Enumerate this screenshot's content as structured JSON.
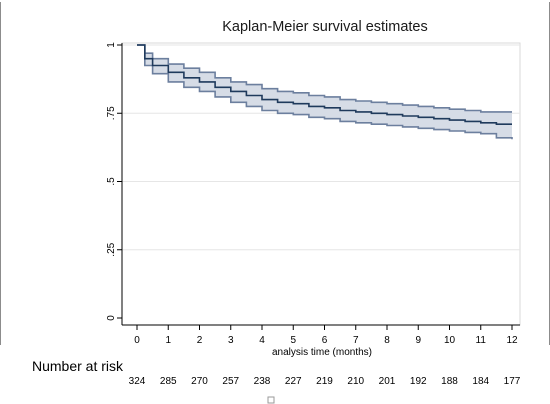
{
  "chart_data": {
    "type": "line",
    "title": "Kaplan-Meier survival estimates",
    "xlabel": "analysis time (months)",
    "ylabel": "",
    "x_ticks": [
      0,
      1,
      2,
      3,
      4,
      5,
      6,
      7,
      8,
      9,
      10,
      11,
      12
    ],
    "y_ticks": [
      0,
      0.25,
      0.5,
      0.75,
      1
    ],
    "y_tick_labels": [
      "0",
      ".25",
      ".5",
      ".75",
      "1"
    ],
    "xlim": [
      0,
      12
    ],
    "ylim": [
      0,
      1
    ],
    "grid": true,
    "x": [
      0,
      0.25,
      0.5,
      1,
      1.5,
      2,
      2.5,
      3,
      3.5,
      4,
      4.5,
      5,
      5.5,
      6,
      6.5,
      7,
      7.5,
      8,
      8.5,
      9,
      9.5,
      10,
      10.5,
      11,
      11.5,
      12
    ],
    "series": [
      {
        "type": "step",
        "values": [
          1.0,
          0.95,
          0.925,
          0.9,
          0.88,
          0.865,
          0.845,
          0.83,
          0.815,
          0.8,
          0.79,
          0.785,
          0.775,
          0.77,
          0.76,
          0.755,
          0.75,
          0.745,
          0.74,
          0.735,
          0.73,
          0.725,
          0.72,
          0.715,
          0.71,
          0.71
        ],
        "ci_lower": [
          1.0,
          0.925,
          0.895,
          0.865,
          0.845,
          0.83,
          0.81,
          0.79,
          0.775,
          0.76,
          0.75,
          0.745,
          0.735,
          0.73,
          0.72,
          0.715,
          0.71,
          0.705,
          0.7,
          0.695,
          0.69,
          0.685,
          0.68,
          0.675,
          0.66,
          0.655
        ],
        "ci_upper": [
          1.0,
          0.97,
          0.95,
          0.93,
          0.915,
          0.9,
          0.88,
          0.865,
          0.855,
          0.84,
          0.83,
          0.825,
          0.815,
          0.81,
          0.8,
          0.795,
          0.79,
          0.785,
          0.78,
          0.775,
          0.77,
          0.765,
          0.76,
          0.755,
          0.755,
          0.755
        ]
      }
    ],
    "number_at_risk": {
      "label": "Number at risk",
      "times": [
        0,
        1,
        2,
        3,
        4,
        5,
        6,
        7,
        8,
        9,
        10,
        11,
        12
      ],
      "counts": [
        324,
        285,
        270,
        257,
        238,
        227,
        219,
        210,
        201,
        192,
        188,
        184,
        177
      ]
    }
  },
  "colors": {
    "line": "#1f3a5c",
    "ci_fill": "#d6dce6",
    "ci_stroke": "#6c7f9e",
    "grid": "#e6e6e6",
    "frame": "#8c8c8c"
  }
}
